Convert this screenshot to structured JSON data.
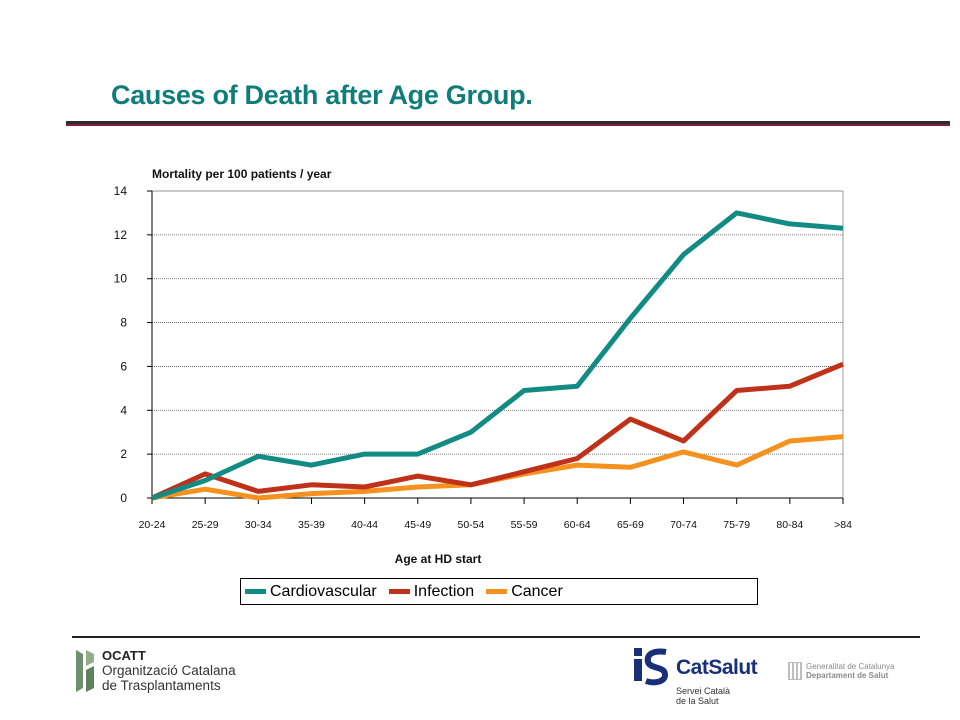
{
  "slide": {
    "title": "Causes of Death after Age Group."
  },
  "chart_data": {
    "type": "line",
    "ylabel": "Mortality per 100 patients / year",
    "xlabel": "Age at HD start",
    "ylim": [
      0,
      14
    ],
    "yticks": [
      0,
      2,
      4,
      6,
      8,
      10,
      12,
      14
    ],
    "grid": true,
    "legend_position": "bottom",
    "categories": [
      "20-24",
      "25-29",
      "30-34",
      "35-39",
      "40-44",
      "45-49",
      "50-54",
      "55-59",
      "60-64",
      "65-69",
      "70-74",
      "75-79",
      "80-84",
      ">84"
    ],
    "series": [
      {
        "name": "Cardiovascular",
        "color": "#138b85",
        "values": [
          0,
          0.8,
          1.9,
          1.5,
          2.0,
          2.0,
          3.0,
          4.9,
          5.1,
          8.2,
          11.1,
          13.0,
          12.5,
          12.3
        ]
      },
      {
        "name": "Infection",
        "color": "#c0311a",
        "values": [
          0,
          1.1,
          0.3,
          0.6,
          0.5,
          1.0,
          0.6,
          1.2,
          1.8,
          3.6,
          2.6,
          4.9,
          5.1,
          6.1
        ]
      },
      {
        "name": "Cancer",
        "color": "#f5911e",
        "values": [
          0,
          0.4,
          0,
          0.2,
          0.3,
          0.5,
          0.6,
          1.1,
          1.5,
          1.4,
          2.1,
          1.5,
          2.6,
          2.8
        ]
      }
    ]
  },
  "footer": {
    "ocatt_abbr": "OCATT",
    "ocatt_line1": "Organització Catalana",
    "ocatt_line2": "de Trasplantaments",
    "catsalut_name": "CatSalut",
    "catsalut_sub1": "Servei Català",
    "catsalut_sub2": "de la Salut",
    "gen_line1": "Generalitat de Catalunya",
    "gen_line2": "Departament de Salut"
  }
}
